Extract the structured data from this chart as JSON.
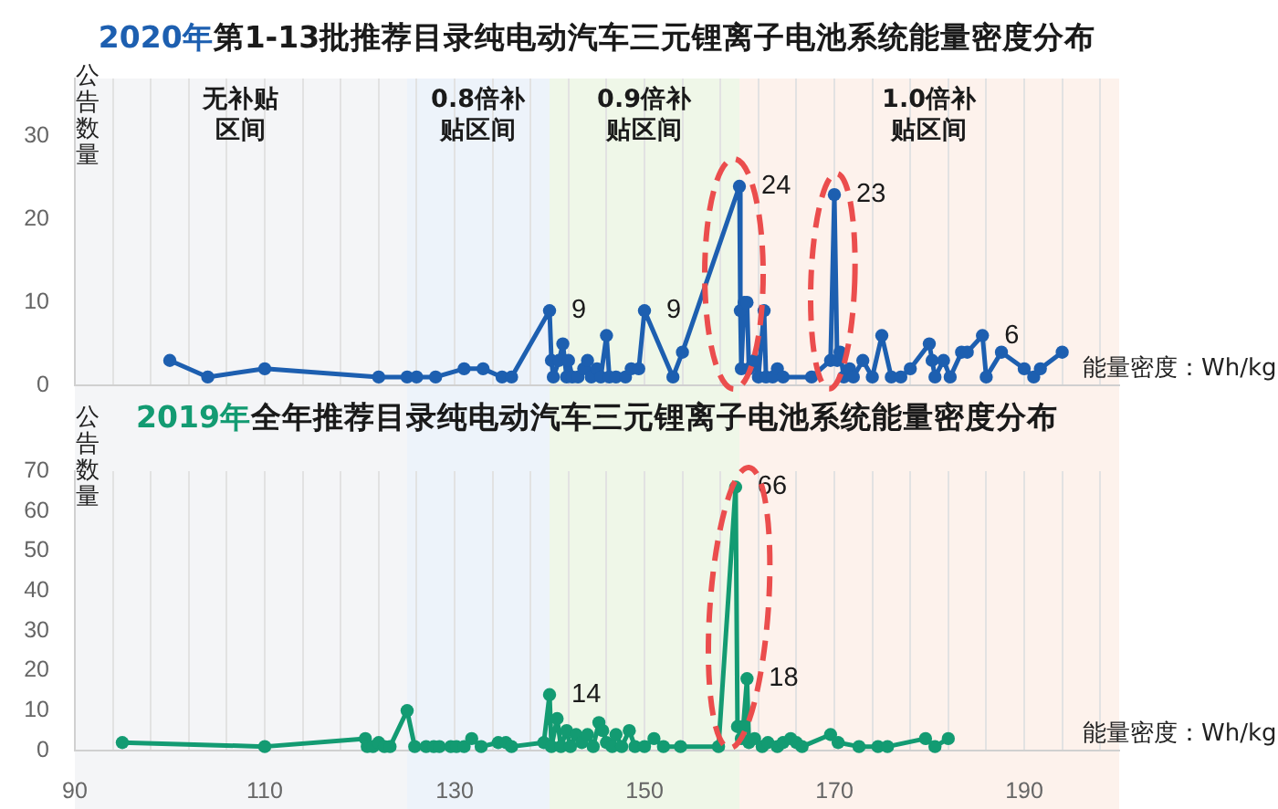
{
  "chart_data": [
    {
      "type": "line",
      "title": "2020年第1-13批推荐目录纯电动汽车三元锂离子电池系统能量密度分布",
      "ylabel": "公告数量",
      "xlabel": "能量密度：Wh/kg",
      "x": [
        100,
        104,
        110,
        122,
        125,
        126,
        128,
        131,
        133,
        135,
        136,
        140,
        140.2,
        140.4,
        141,
        141.4,
        141.8,
        142,
        142.4,
        143,
        143.6,
        144,
        144.4,
        145,
        145.4,
        146,
        146.3,
        147,
        148,
        148.6,
        149.4,
        150,
        153,
        154,
        160,
        160.1,
        160.2,
        160.5,
        160.8,
        161,
        161.6,
        162,
        162.6,
        162.8,
        163.5,
        164,
        164.6,
        167.6,
        169.6,
        170,
        170.3,
        170.6,
        171,
        171.6,
        172,
        173,
        174,
        175,
        176,
        177,
        178,
        180,
        180.3,
        180.6,
        181.5,
        182.2,
        183.4,
        184,
        185.6,
        186,
        187.6,
        190,
        191,
        191.7,
        194
      ],
      "series": [
        {
          "color": "#1d5fb0",
          "values": [
            3,
            1,
            2,
            1,
            1,
            1,
            1,
            2,
            2,
            1,
            1,
            9,
            3,
            1,
            3,
            5,
            1,
            3,
            1,
            1,
            2,
            3,
            1,
            2,
            1,
            6,
            1,
            1,
            1,
            2,
            2,
            9,
            1,
            4,
            24,
            9,
            2,
            10,
            10,
            2,
            3,
            1,
            9,
            1,
            1,
            2,
            1,
            1,
            3,
            23,
            3,
            4,
            1,
            2,
            1,
            3,
            1,
            6,
            1,
            1,
            2,
            5,
            3,
            1,
            3,
            1,
            4,
            4,
            6,
            1,
            4,
            2,
            1,
            2,
            4
          ],
          "value_labels": [
            null,
            null,
            null,
            null,
            null,
            null,
            null,
            null,
            null,
            null,
            null,
            "9",
            null,
            null,
            null,
            null,
            null,
            null,
            null,
            null,
            null,
            null,
            null,
            null,
            null,
            null,
            null,
            null,
            null,
            null,
            null,
            "9",
            null,
            null,
            "24",
            null,
            null,
            null,
            null,
            null,
            null,
            null,
            null,
            null,
            null,
            null,
            null,
            null,
            null,
            "23",
            null,
            null,
            null,
            null,
            null,
            null,
            null,
            null,
            null,
            null,
            null,
            null,
            null,
            null,
            null,
            null,
            null,
            null,
            "6",
            null,
            null,
            null,
            null,
            null,
            null
          ]
        }
      ],
      "xlim": [
        90,
        200
      ],
      "xticks": [
        90,
        {
          "value": 94,
          "label": null
        },
        {
          "value": 98,
          "label": null
        },
        {
          "value": 102,
          "label": null
        },
        {
          "value": 106,
          "label": null
        },
        110,
        {
          "value": 114,
          "label": null
        },
        {
          "value": 118,
          "label": null
        },
        {
          "value": 122,
          "label": null
        },
        {
          "value": 126,
          "label": null
        },
        130,
        {
          "value": 134,
          "label": null
        },
        {
          "value": 138,
          "label": null
        },
        {
          "value": 142,
          "label": null
        },
        {
          "value": 146,
          "label": null
        },
        150,
        {
          "value": 154,
          "label": null
        },
        {
          "value": 158,
          "label": null
        },
        {
          "value": 162,
          "label": null
        },
        {
          "value": 166,
          "label": null
        },
        170,
        {
          "value": 174,
          "label": null
        },
        {
          "value": 178,
          "label": null
        },
        {
          "value": 182,
          "label": null
        },
        {
          "value": 186,
          "label": null
        },
        190,
        {
          "value": 194,
          "label": null
        },
        {
          "value": 198,
          "label": null
        }
      ],
      "ylim": [
        0,
        37
      ],
      "yticks": [
        0,
        10,
        20,
        30
      ],
      "tick_labels": "y",
      "grid": "x",
      "marker": "circle",
      "bands": [
        {
          "axis": "x",
          "from": 90,
          "to": 125,
          "label": "无补贴区间",
          "color": "#f4f5f7"
        },
        {
          "axis": "x",
          "from": 125,
          "to": 140,
          "label": "0.8倍补贴区间",
          "color": "#edf3fa"
        },
        {
          "axis": "x",
          "from": 140,
          "to": 160,
          "label": "0.9倍补贴区间",
          "color": "#eff7e8"
        },
        {
          "axis": "x",
          "from": 160,
          "to": 200,
          "label": "1.0倍补贴区间",
          "color": "#fdf2ec"
        }
      ]
    },
    {
      "type": "line",
      "title": "2019年全年推荐目录纯电动汽车三元锂离子电池系统能量密度分布",
      "ylabel": "公告数量",
      "xlabel": "能量密度：Wh/kg",
      "x": [
        95,
        110,
        120.6,
        120.8,
        121.4,
        122,
        122.6,
        123.2,
        125,
        125.8,
        127,
        127.8,
        128.4,
        129.6,
        130.2,
        131,
        131.8,
        132.8,
        134.6,
        135.4,
        136,
        139.4,
        140,
        140.2,
        140.8,
        141.2,
        141.8,
        142.2,
        142.8,
        143.4,
        144,
        144.6,
        145.2,
        145.6,
        146,
        146.6,
        147,
        147.6,
        148.4,
        149,
        150,
        151,
        152,
        153.8,
        157.8,
        159.6,
        159.8,
        160.2,
        160.4,
        160.8,
        161,
        161.6,
        162.4,
        163,
        164,
        164.6,
        165.4,
        166,
        166.6,
        169.6,
        170.4,
        172.6,
        174.6,
        175.6,
        179.6,
        180.6,
        182
      ],
      "series": [
        {
          "color": "#139b72",
          "values": [
            2,
            1,
            3,
            1,
            1,
            2,
            1,
            1,
            10,
            1,
            1,
            1,
            1,
            1,
            1,
            1,
            3,
            1,
            2,
            2,
            1,
            2,
            14,
            1,
            8,
            1,
            5,
            1,
            4,
            2,
            4,
            1,
            7,
            5,
            2,
            1,
            4,
            1,
            5,
            1,
            1,
            3,
            1,
            1,
            1,
            66,
            6,
            3,
            6,
            18,
            2,
            3,
            1,
            2,
            1,
            2,
            3,
            2,
            1,
            4,
            2,
            1,
            1,
            1,
            3,
            1,
            3
          ],
          "value_labels": [
            null,
            null,
            null,
            null,
            null,
            null,
            null,
            null,
            null,
            null,
            null,
            null,
            null,
            null,
            null,
            null,
            null,
            null,
            null,
            null,
            null,
            null,
            "14",
            null,
            null,
            null,
            null,
            null,
            null,
            null,
            null,
            null,
            null,
            null,
            null,
            null,
            null,
            null,
            null,
            null,
            null,
            null,
            null,
            null,
            null,
            "66",
            null,
            null,
            null,
            "18",
            null,
            null,
            null,
            null,
            null,
            null,
            null,
            null,
            null,
            null,
            null,
            null,
            null,
            null,
            null,
            null,
            null
          ]
        }
      ],
      "xlim": [
        90,
        200
      ],
      "xticks": [
        90,
        {
          "value": 94,
          "label": null
        },
        {
          "value": 98,
          "label": null
        },
        {
          "value": 102,
          "label": null
        },
        {
          "value": 106,
          "label": null
        },
        110,
        {
          "value": 114,
          "label": null
        },
        {
          "value": 118,
          "label": null
        },
        {
          "value": 122,
          "label": null
        },
        {
          "value": 126,
          "label": null
        },
        130,
        {
          "value": 134,
          "label": null
        },
        {
          "value": 138,
          "label": null
        },
        {
          "value": 142,
          "label": null
        },
        {
          "value": 146,
          "label": null
        },
        150,
        {
          "value": 154,
          "label": null
        },
        {
          "value": 158,
          "label": null
        },
        {
          "value": 162,
          "label": null
        },
        {
          "value": 166,
          "label": null
        },
        170,
        {
          "value": 174,
          "label": null
        },
        {
          "value": 178,
          "label": null
        },
        {
          "value": 182,
          "label": null
        },
        {
          "value": 186,
          "label": null
        },
        190,
        {
          "value": 194,
          "label": null
        },
        {
          "value": 198,
          "label": null
        }
      ],
      "ylim": [
        0,
        70
      ],
      "yticks": [
        0,
        10,
        20,
        30,
        40,
        50,
        60,
        70
      ],
      "grid": "x",
      "marker": "circle",
      "bands": [
        {
          "axis": "x",
          "from": 90,
          "to": 125,
          "color": "#f4f5f7"
        },
        {
          "axis": "x",
          "from": 125,
          "to": 140,
          "color": "#edf3fa"
        },
        {
          "axis": "x",
          "from": 140,
          "to": 160,
          "color": "#eff7e8"
        },
        {
          "axis": "x",
          "from": 160,
          "to": 200,
          "color": "#fdf2ec"
        }
      ]
    }
  ]
}
